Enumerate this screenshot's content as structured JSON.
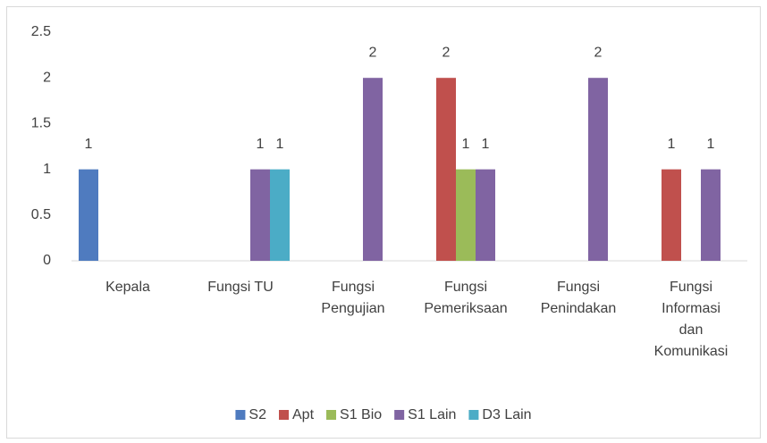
{
  "chart_data": {
    "type": "bar",
    "categories": [
      "Kepala",
      "Fungsi TU",
      "Fungsi\nPengujian",
      "Fungsi\nPemeriksaan",
      "Fungsi\nPenindakan",
      "Fungsi\nInformasi\ndan\nKomunikasi"
    ],
    "series": [
      {
        "name": "S2",
        "color": "#4f7bbf",
        "values": [
          1,
          null,
          null,
          null,
          null,
          null
        ]
      },
      {
        "name": "Apt",
        "color": "#c0504d",
        "values": [
          null,
          null,
          null,
          2,
          null,
          1
        ]
      },
      {
        "name": "S1 Bio",
        "color": "#9bbb59",
        "values": [
          null,
          null,
          null,
          1,
          null,
          null
        ]
      },
      {
        "name": "S1 Lain",
        "color": "#8064a2",
        "values": [
          null,
          1,
          2,
          1,
          2,
          1
        ]
      },
      {
        "name": "D3 Lain",
        "color": "#4bacc6",
        "values": [
          null,
          1,
          null,
          null,
          null,
          null
        ]
      }
    ],
    "ylim": [
      0,
      2.5
    ],
    "yticks": [
      0,
      0.5,
      1,
      1.5,
      2,
      2.5
    ],
    "legend": "bottom"
  }
}
